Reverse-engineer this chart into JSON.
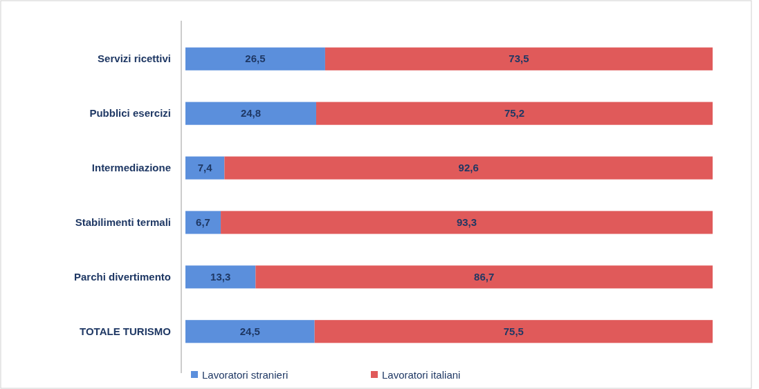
{
  "chart_data": {
    "type": "bar",
    "orientation": "horizontal",
    "stacked": true,
    "legend": "bottom",
    "categories": [
      "Servizi ricettivi",
      "Pubblici esercizi",
      "Intermediazione",
      "Stabilimenti termali",
      "Parchi divertimento",
      "TOTALE TURISMO"
    ],
    "series": [
      {
        "name": "Lavoratori stranieri",
        "color": "#5b8fdc",
        "values": [
          26.5,
          24.8,
          7.4,
          6.7,
          13.3,
          24.5
        ],
        "value_labels": [
          "26,5",
          "24,8",
          "7,4",
          "6,7",
          "13,3",
          "24,5"
        ]
      },
      {
        "name": "Lavoratori italiani",
        "color": "#e05a5a",
        "values": [
          73.5,
          75.2,
          92.6,
          93.3,
          86.7,
          75.5
        ],
        "value_labels": [
          "73,5",
          "75,2",
          "92,6",
          "93,3",
          "86,7",
          "75,5"
        ]
      }
    ]
  }
}
